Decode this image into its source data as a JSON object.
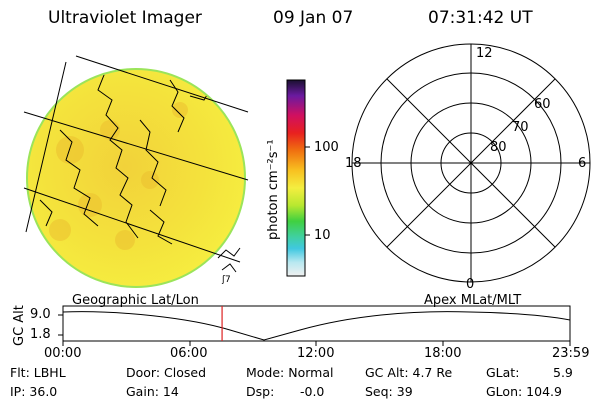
{
  "header": {
    "title": "Ultraviolet Imager",
    "date": "09 Jan 07",
    "time": "07:31:42 UT"
  },
  "colorbar": {
    "label": "photon cm⁻²s⁻¹",
    "ticks": [
      "100",
      "10"
    ]
  },
  "polar": {
    "hour_labels": [
      "12",
      "18",
      "6",
      "0"
    ],
    "lat_labels": [
      "60",
      "70",
      "80"
    ]
  },
  "timeline": {
    "left_caption": "Geographic Lat/Lon",
    "right_caption": "Apex MLat/MLT",
    "ylabel": "GC Alt",
    "y_ticks": [
      "9.0",
      "1.8"
    ],
    "x_ticks": [
      "00:00",
      "06:00",
      "12:00",
      "18:00",
      "23:59"
    ],
    "current_time_hours": 7.53,
    "marker_color": "#dd2222"
  },
  "info": {
    "row1": [
      "Flt: LBHL",
      "Door: Closed",
      "Mode: Normal",
      "GC Alt: 4.7 Re",
      "GLat:",
      "5.9"
    ],
    "row2": [
      "IP: 36.0",
      "Gain: 14",
      "Dsp:",
      "-0.0",
      "Seq: 39",
      "GLon: 104.9"
    ]
  },
  "colors": {
    "disk_fill": "#f3e23a",
    "disk_edge": "#9be45a"
  }
}
